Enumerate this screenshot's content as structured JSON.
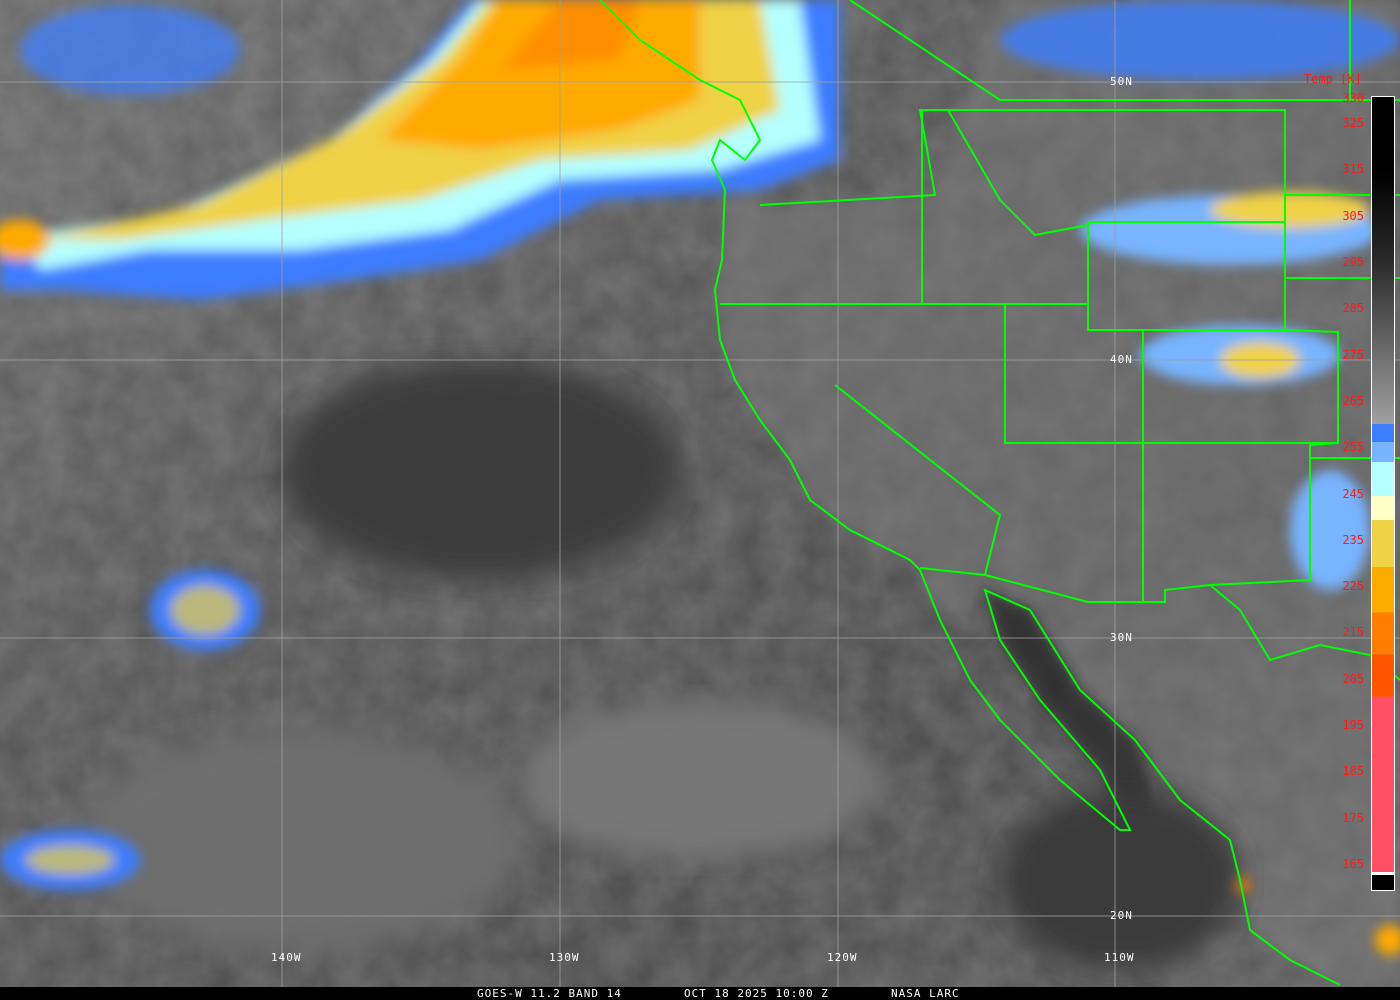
{
  "caption": {
    "satellite_band": "GOES-W 11.2 BAND 14",
    "datetime": "OCT 18 2025 10:00 Z",
    "credit": "NASA LARC"
  },
  "colorbar": {
    "title": "Temp [K]",
    "labels": [
      "330",
      "325",
      "315",
      "305",
      "295",
      "285",
      "275",
      "265",
      "255",
      "245",
      "235",
      "225",
      "215",
      "205",
      "195",
      "185",
      "175",
      "165"
    ],
    "colors": {
      "warm_gray_top": "#000000",
      "warm_gray_bottom": "#a0a0a0",
      "blue": "#3c7dff",
      "light_blue": "#78b4ff",
      "cyan": "#b4ffff",
      "pale_yellow": "#ffffc8",
      "yellow": "#f0d246",
      "orange": "#ffaa00",
      "dark_orange": "#ff7d00",
      "red_orange": "#ff5500",
      "pink": "#ff5064",
      "coldest": "#000000"
    }
  },
  "grid": {
    "longitudes": [
      "140W",
      "130W",
      "120W",
      "110W"
    ],
    "latitudes": [
      "50N",
      "40N",
      "30N",
      "20N"
    ]
  },
  "map_colors": {
    "borders": "#00ff00",
    "gridlines": "#a0a0a0"
  }
}
